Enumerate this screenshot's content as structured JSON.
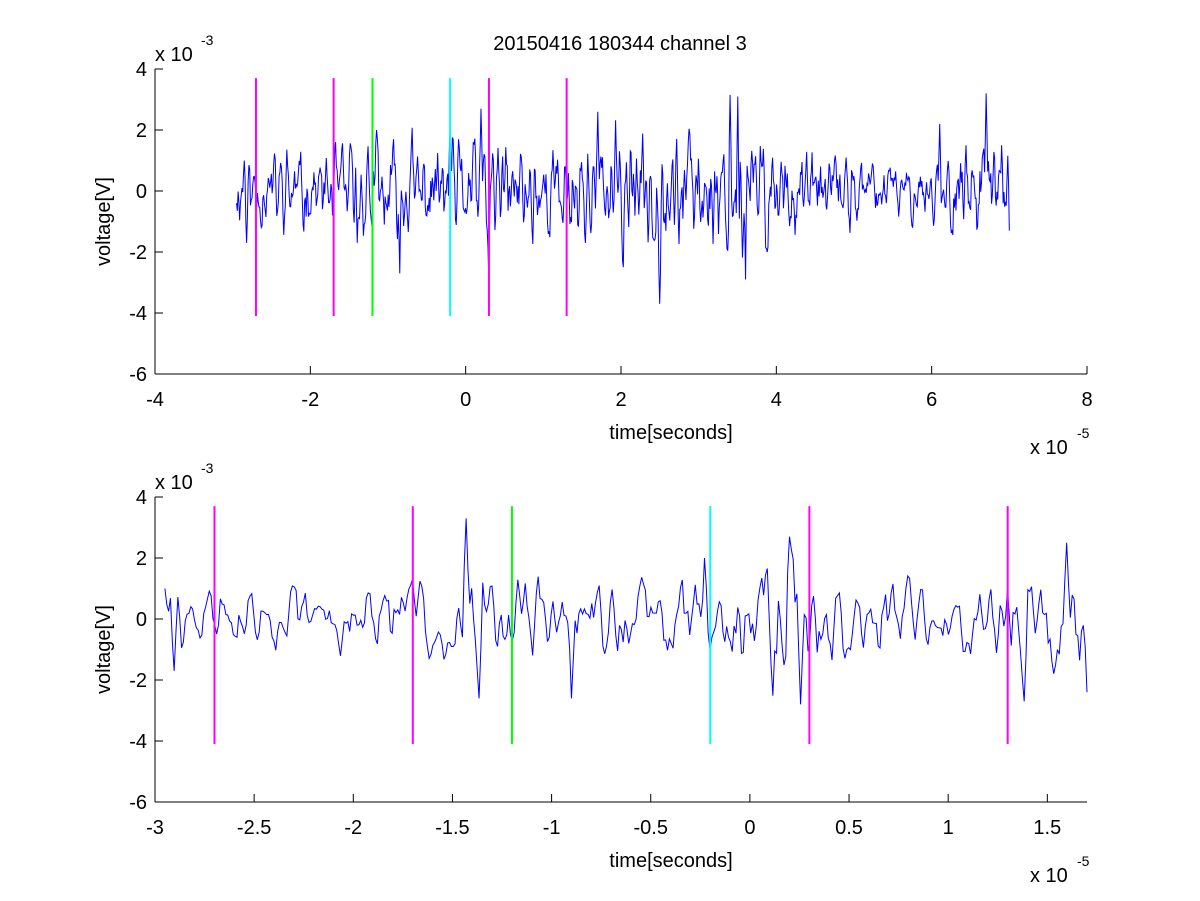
{
  "figure": {
    "title": "20150416 180344 channel 3",
    "background": "#ffffff",
    "trace_color": "#0000ff",
    "axis_color": "#000000"
  },
  "chart_data": [
    {
      "type": "line",
      "title": "20150416 180344 channel 3",
      "xlabel": "time[seconds]",
      "ylabel": "voltage[V]",
      "x_multiplier_label": "x 10",
      "x_multiplier_exp": "-5",
      "y_multiplier_label": "x 10",
      "y_multiplier_exp": "-3",
      "xlim": [
        -4,
        8
      ],
      "ylim": [
        -6,
        4
      ],
      "xticks": [
        -4,
        -2,
        0,
        2,
        4,
        6,
        8
      ],
      "xtick_labels": [
        "-4",
        "-2",
        "0",
        "2",
        "4",
        "6",
        "8"
      ],
      "yticks": [
        -6,
        -4,
        -2,
        0,
        2,
        4
      ],
      "ytick_labels": [
        "-6",
        "-4",
        "-2",
        "0",
        "2",
        "4"
      ],
      "grid": false,
      "series": [
        {
          "color": "#0000ff",
          "x_start": -2.95,
          "x_end": 7.0,
          "samples": 1000,
          "seed": 11,
          "envelope": [
            [
              -2.95,
              1.0
            ],
            [
              -2.0,
              1.0
            ],
            [
              -1.2,
              1.25
            ],
            [
              -0.2,
              1.35
            ],
            [
              0.5,
              1.4
            ],
            [
              1.3,
              1.3
            ],
            [
              2.0,
              1.55
            ],
            [
              3.0,
              1.5
            ],
            [
              3.5,
              1.7
            ],
            [
              4.0,
              1.3
            ],
            [
              5.0,
              0.9
            ],
            [
              6.0,
              0.7
            ],
            [
              6.5,
              1.4
            ],
            [
              7.0,
              1.2
            ]
          ],
          "extremes": [
            {
              "x": -2.85,
              "y": 1.0
            },
            {
              "x": -2.82,
              "y": -1.7
            },
            {
              "x": -1.4,
              "y": -1.7
            },
            {
              "x": -1.15,
              "y": 2.0
            },
            {
              "x": -1.05,
              "y": -1.1
            },
            {
              "x": -0.85,
              "y": -2.7
            },
            {
              "x": -0.2,
              "y": 2.1
            },
            {
              "x": 0.2,
              "y": 2.7
            },
            {
              "x": 0.3,
              "y": -2.8
            },
            {
              "x": 1.7,
              "y": 2.6
            },
            {
              "x": 2.5,
              "y": -3.7
            },
            {
              "x": 3.4,
              "y": 3.15
            },
            {
              "x": 3.5,
              "y": 3.1
            },
            {
              "x": 3.6,
              "y": -2.9
            },
            {
              "x": 6.1,
              "y": 2.2
            },
            {
              "x": 6.7,
              "y": 3.2
            },
            {
              "x": 6.9,
              "y": 1.5
            },
            {
              "x": 7.0,
              "y": -1.3
            }
          ]
        }
      ],
      "markers": [
        {
          "x": -2.7,
          "color": "#ff00ff",
          "y_bottom": -4.1,
          "y_top": 3.7
        },
        {
          "x": -1.7,
          "color": "#ff00ff",
          "y_bottom": -4.1,
          "y_top": 3.7
        },
        {
          "x": -1.2,
          "color": "#00ff00",
          "y_bottom": -4.1,
          "y_top": 3.7
        },
        {
          "x": -0.2,
          "color": "#00ffff",
          "y_bottom": -4.1,
          "y_top": 3.7
        },
        {
          "x": 0.3,
          "color": "#ff00ff",
          "y_bottom": -4.1,
          "y_top": 3.7
        },
        {
          "x": 1.3,
          "color": "#ff00ff",
          "y_bottom": -4.1,
          "y_top": 3.7
        }
      ]
    },
    {
      "type": "line",
      "title": "",
      "xlabel": "time[seconds]",
      "ylabel": "voltage[V]",
      "x_multiplier_label": "x 10",
      "x_multiplier_exp": "-5",
      "y_multiplier_label": "x 10",
      "y_multiplier_exp": "-3",
      "xlim": [
        -3.0,
        1.7
      ],
      "ylim": [
        -6,
        4
      ],
      "xticks": [
        -3,
        -2.5,
        -2,
        -1.5,
        -1,
        -0.5,
        0,
        0.5,
        1,
        1.5
      ],
      "xtick_labels": [
        "-3",
        "-2.5",
        "-2",
        "-1.5",
        "-1",
        "-0.5",
        "0",
        "0.5",
        "1",
        "1.5"
      ],
      "yticks": [
        -6,
        -4,
        -2,
        0,
        2,
        4
      ],
      "ytick_labels": [
        "-6",
        "-4",
        "-2",
        "0",
        "2",
        "4"
      ],
      "grid": false,
      "series": [
        {
          "color": "#0000ff",
          "x_start": -2.95,
          "x_end": 1.7,
          "samples": 500,
          "seed": 29,
          "envelope": [
            [
              -2.95,
              0.9
            ],
            [
              -2.0,
              0.8
            ],
            [
              -1.5,
              1.1
            ],
            [
              -1.2,
              1.2
            ],
            [
              -0.5,
              1.0
            ],
            [
              -0.2,
              1.3
            ],
            [
              0.2,
              1.8
            ],
            [
              0.5,
              1.2
            ],
            [
              1.0,
              0.8
            ],
            [
              1.3,
              1.2
            ],
            [
              1.7,
              1.6
            ]
          ],
          "extremes": [
            {
              "x": -2.95,
              "y": 1.0
            },
            {
              "x": -2.9,
              "y": -1.7
            },
            {
              "x": -2.7,
              "y": -0.2
            },
            {
              "x": -1.7,
              "y": 1.3
            },
            {
              "x": -1.43,
              "y": 3.3
            },
            {
              "x": -1.37,
              "y": -2.6
            },
            {
              "x": -1.2,
              "y": -0.7
            },
            {
              "x": -0.9,
              "y": -2.6
            },
            {
              "x": -0.23,
              "y": 2.0
            },
            {
              "x": 0.2,
              "y": 2.7
            },
            {
              "x": 0.26,
              "y": -2.8
            },
            {
              "x": 1.3,
              "y": 1.0
            },
            {
              "x": 1.38,
              "y": -2.7
            },
            {
              "x": 1.6,
              "y": 2.5
            },
            {
              "x": 1.7,
              "y": -2.4
            }
          ]
        }
      ],
      "markers": [
        {
          "x": -2.7,
          "color": "#ff00ff",
          "y_bottom": -4.1,
          "y_top": 3.7
        },
        {
          "x": -1.7,
          "color": "#ff00ff",
          "y_bottom": -4.1,
          "y_top": 3.7
        },
        {
          "x": -1.2,
          "color": "#00ff00",
          "y_bottom": -4.1,
          "y_top": 3.7
        },
        {
          "x": -0.2,
          "color": "#00ffff",
          "y_bottom": -4.1,
          "y_top": 3.7
        },
        {
          "x": 0.3,
          "color": "#ff00ff",
          "y_bottom": -4.1,
          "y_top": 3.7
        },
        {
          "x": 1.3,
          "color": "#ff00ff",
          "y_bottom": -4.1,
          "y_top": 3.7
        }
      ]
    }
  ]
}
